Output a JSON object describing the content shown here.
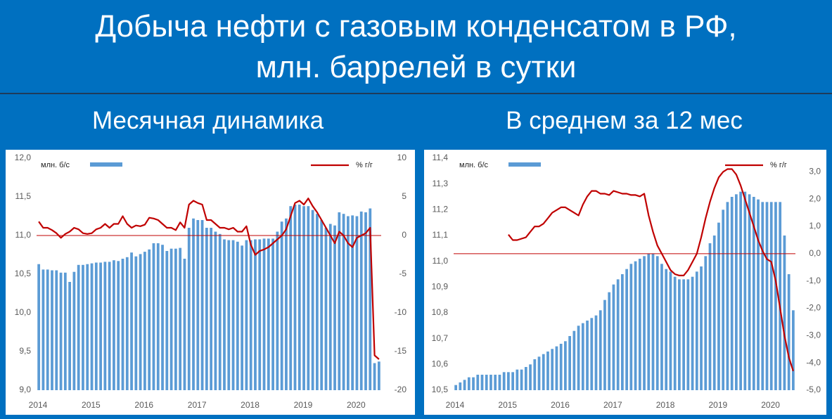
{
  "title_lines": [
    "Добыча нефти с газовым конденсатом в РФ,",
    "млн. баррелей в сутки"
  ],
  "chart_data": [
    {
      "type": "bar_line",
      "title": "Месячная динамика",
      "categories": [
        "2014",
        null,
        null,
        null,
        null,
        null,
        null,
        null,
        null,
        null,
        null,
        null,
        "2015",
        null,
        null,
        null,
        null,
        null,
        null,
        null,
        null,
        null,
        null,
        null,
        "2016",
        null,
        null,
        null,
        null,
        null,
        null,
        null,
        null,
        null,
        null,
        null,
        "2017",
        null,
        null,
        null,
        null,
        null,
        null,
        null,
        null,
        null,
        null,
        null,
        "2018",
        null,
        null,
        null,
        null,
        null,
        null,
        null,
        null,
        null,
        null,
        null,
        "2019",
        null,
        null,
        null,
        null,
        null,
        null,
        null,
        null,
        null,
        null,
        null,
        "2020",
        null,
        null,
        null,
        null,
        null
      ],
      "series": [
        {
          "name": "млн. б/с",
          "color": "#5b9bd5",
          "values": [
            10.63,
            10.56,
            10.56,
            10.55,
            10.55,
            10.52,
            10.52,
            10.4,
            10.53,
            10.62,
            10.62,
            10.63,
            10.64,
            10.65,
            10.65,
            10.66,
            10.66,
            10.68,
            10.67,
            10.7,
            10.72,
            10.78,
            10.73,
            10.76,
            10.79,
            10.82,
            10.9,
            10.9,
            10.88,
            10.8,
            10.83,
            10.83,
            10.84,
            10.7,
            11.1,
            11.22,
            11.2,
            11.2,
            11.1,
            11.1,
            11.05,
            11.02,
            10.95,
            10.94,
            10.94,
            10.92,
            10.87,
            10.94,
            10.94,
            10.95,
            10.95,
            10.96,
            10.96,
            10.96,
            11.05,
            11.18,
            11.22,
            11.38,
            11.4,
            11.4,
            11.38,
            11.38,
            11.33,
            11.28,
            11.2,
            11.1,
            11.15,
            11.13,
            11.3,
            11.28,
            11.25,
            11.26,
            11.25,
            11.31,
            11.3,
            11.35,
            9.35,
            9.37
          ]
        },
        {
          "name": "% г/г",
          "color": "#c00000",
          "axis": "y2",
          "values": [
            1.8,
            1.0,
            1.0,
            0.7,
            0.3,
            -0.3,
            0.2,
            0.5,
            1.0,
            0.8,
            0.3,
            0.2,
            0.3,
            0.8,
            1.0,
            1.5,
            1.0,
            1.5,
            1.5,
            2.5,
            1.5,
            1.0,
            1.3,
            1.2,
            1.4,
            2.3,
            2.2,
            2.0,
            1.5,
            1.0,
            1.0,
            0.7,
            1.7,
            1.0,
            4.0,
            4.5,
            4.2,
            4.0,
            2.0,
            2.0,
            1.5,
            1.0,
            1.0,
            0.8,
            1.0,
            0.5,
            0.5,
            1.2,
            -1.2,
            -2.5,
            -2.0,
            -1.8,
            -1.5,
            -1.0,
            -0.5,
            0.0,
            0.8,
            2.5,
            4.2,
            4.5,
            4.0,
            4.8,
            3.8,
            3.0,
            2.0,
            1.0,
            0.0,
            -1.0,
            0.5,
            0.0,
            -1.0,
            -1.5,
            -0.3,
            0.0,
            0.3,
            1.0,
            -15.5,
            -16.0
          ]
        }
      ],
      "ylim": [
        9.0,
        12.0
      ],
      "yticks": [
        {
          "value": 9.0,
          "label": "9,0"
        },
        {
          "value": 9.5,
          "label": "9,5"
        },
        {
          "value": 10.0,
          "label": "10,0"
        },
        {
          "value": 10.5,
          "label": "10,5"
        },
        {
          "value": 11.0,
          "label": "11,0"
        },
        {
          "value": 11.5,
          "label": "11,5"
        },
        {
          "value": 12.0,
          "label": "12,0"
        }
      ],
      "y2lim": [
        -20,
        10
      ],
      "y2ticks": [
        -20,
        -15,
        -10,
        -5,
        0,
        5,
        10
      ],
      "hline_y2": 0,
      "grid": false
    },
    {
      "type": "bar_line",
      "title": "В среднем за 12 мес",
      "categories": [
        "2014",
        null,
        null,
        null,
        null,
        null,
        null,
        null,
        null,
        null,
        null,
        null,
        "2015",
        null,
        null,
        null,
        null,
        null,
        null,
        null,
        null,
        null,
        null,
        null,
        "2016",
        null,
        null,
        null,
        null,
        null,
        null,
        null,
        null,
        null,
        null,
        null,
        "2017",
        null,
        null,
        null,
        null,
        null,
        null,
        null,
        null,
        null,
        null,
        null,
        "2018",
        null,
        null,
        null,
        null,
        null,
        null,
        null,
        null,
        null,
        null,
        null,
        "2019",
        null,
        null,
        null,
        null,
        null,
        null,
        null,
        null,
        null,
        null,
        null,
        "2020",
        null,
        null,
        null,
        null,
        null
      ],
      "series": [
        {
          "name": "млн. б/с",
          "color": "#5b9bd5",
          "values": [
            10.52,
            10.53,
            10.54,
            10.55,
            10.55,
            10.56,
            10.56,
            10.56,
            10.56,
            10.56,
            10.56,
            10.57,
            10.57,
            10.57,
            10.58,
            10.58,
            10.59,
            10.6,
            10.62,
            10.63,
            10.64,
            10.65,
            10.66,
            10.67,
            10.68,
            10.69,
            10.71,
            10.73,
            10.75,
            10.76,
            10.77,
            10.78,
            10.79,
            10.81,
            10.85,
            10.88,
            10.91,
            10.93,
            10.95,
            10.97,
            10.99,
            11.0,
            11.01,
            11.02,
            11.03,
            11.03,
            11.02,
            10.99,
            10.97,
            10.96,
            10.94,
            10.93,
            10.93,
            10.93,
            10.94,
            10.96,
            10.98,
            11.02,
            11.07,
            11.1,
            11.15,
            11.2,
            11.23,
            11.25,
            11.26,
            11.27,
            11.27,
            11.26,
            11.25,
            11.24,
            11.23,
            11.23,
            11.23,
            11.23,
            11.23,
            11.1,
            10.95,
            10.81
          ]
        },
        {
          "name": "% г/г",
          "color": "#c00000",
          "axis": "y2",
          "values": [
            null,
            null,
            null,
            null,
            null,
            null,
            null,
            null,
            null,
            null,
            null,
            null,
            0.7,
            0.5,
            0.5,
            0.55,
            0.6,
            0.8,
            1.0,
            1.0,
            1.1,
            1.3,
            1.5,
            1.6,
            1.7,
            1.7,
            1.6,
            1.5,
            1.4,
            1.8,
            2.1,
            2.3,
            2.3,
            2.2,
            2.2,
            2.15,
            2.3,
            2.25,
            2.2,
            2.2,
            2.15,
            2.15,
            2.1,
            2.2,
            1.4,
            0.8,
            0.3,
            0.0,
            -0.3,
            -0.6,
            -0.75,
            -0.8,
            -0.8,
            -0.6,
            -0.3,
            0.0,
            0.6,
            1.3,
            1.9,
            2.4,
            2.8,
            3.0,
            3.1,
            3.1,
            2.9,
            2.5,
            2.0,
            1.5,
            1.0,
            0.5,
            0.1,
            -0.2,
            -0.3,
            -1.0,
            -2.0,
            -3.0,
            -3.8,
            -4.3
          ]
        }
      ],
      "ylim": [
        10.5,
        11.4
      ],
      "yticks": [
        {
          "value": 10.5,
          "label": "10,5"
        },
        {
          "value": 10.6,
          "label": "10,6"
        },
        {
          "value": 10.7,
          "label": "10,7"
        },
        {
          "value": 10.8,
          "label": "10,8"
        },
        {
          "value": 10.9,
          "label": "10,9"
        },
        {
          "value": 11.0,
          "label": "11,0"
        },
        {
          "value": 11.1,
          "label": "11,1"
        },
        {
          "value": 11.2,
          "label": "11,2"
        },
        {
          "value": 11.3,
          "label": "11,3"
        },
        {
          "value": 11.4,
          "label": "11,4"
        }
      ],
      "y2lim": [
        -5.0,
        3.5
      ],
      "y2ticks": [
        {
          "value": -5.0,
          "label": "-5,0"
        },
        {
          "value": -4.0,
          "label": "-4,0"
        },
        {
          "value": -3.0,
          "label": "-3,0"
        },
        {
          "value": -2.0,
          "label": "-2,0"
        },
        {
          "value": -1.0,
          "label": "-1,0"
        },
        {
          "value": 0.0,
          "label": "0,0"
        },
        {
          "value": 1.0,
          "label": "1,0"
        },
        {
          "value": 2.0,
          "label": "2,0"
        },
        {
          "value": 3.0,
          "label": "3,0"
        }
      ],
      "hline_y2": 0,
      "grid": false
    }
  ]
}
